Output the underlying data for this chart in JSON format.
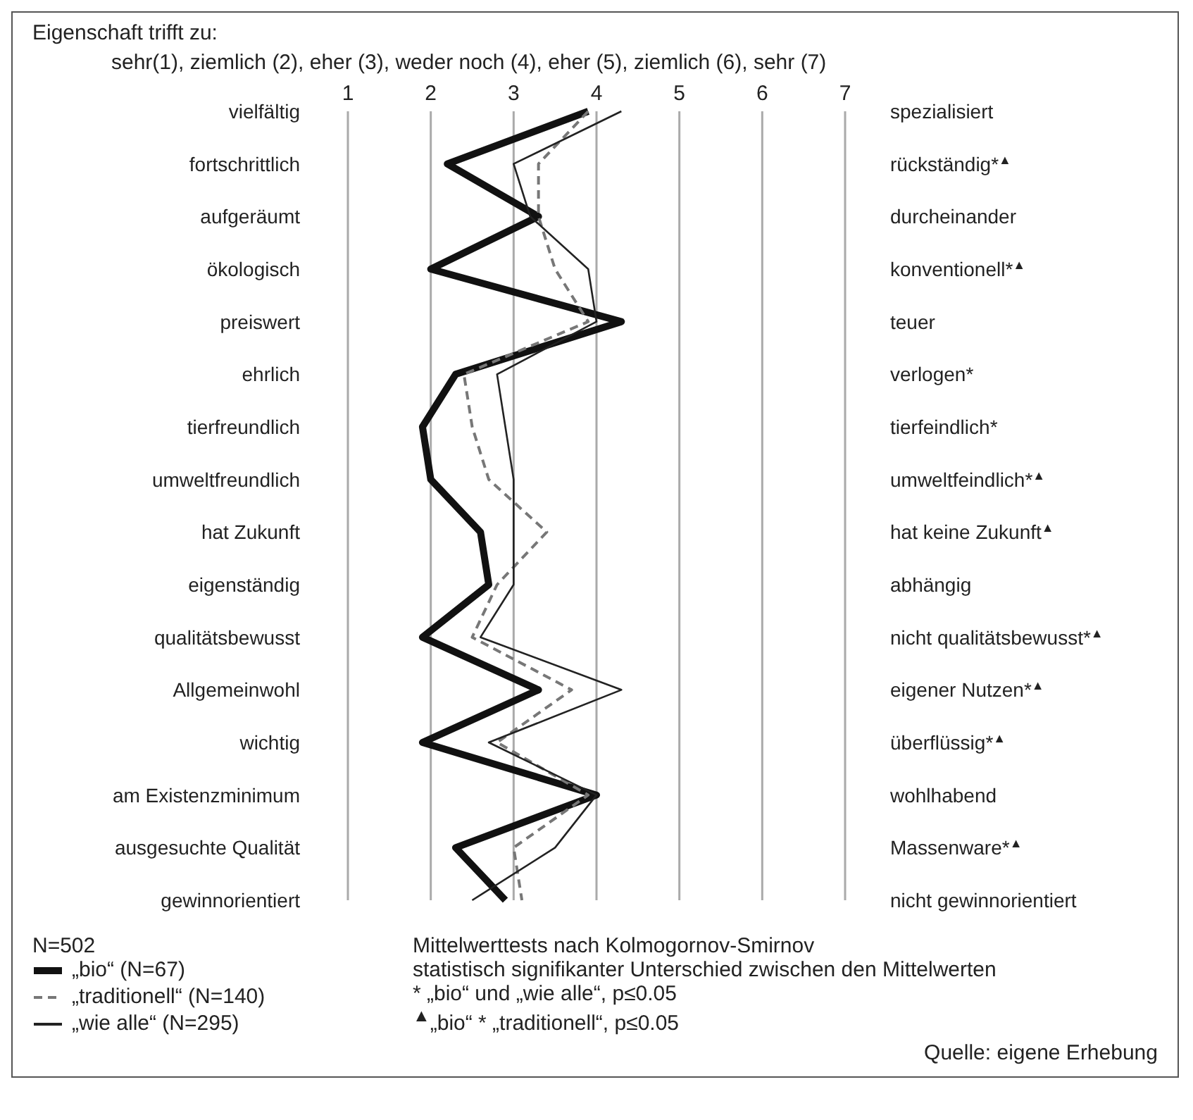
{
  "chart_data": {
    "type": "line",
    "orientation": "horizontal",
    "title": "Eigenschaft trifft zu:",
    "subtitle": "sehr(1), ziemlich (2), eher (3), weder noch (4), eher (5), ziemlich (6), sehr (7)",
    "categories": [
      "vielfältig",
      "fortschrittlich",
      "aufgeräumt",
      "ökologisch",
      "preiswert",
      "ehrlich",
      "tierfreundlich",
      "umweltfreundlich",
      "hat Zukunft",
      "eigenständig",
      "qualitätsbewusst",
      "Allgemeinwohl",
      "wichtig",
      "am Existenzminimum",
      "ausgesuchte Qualität",
      "gewinnorientiert"
    ],
    "y2_categories": [
      "spezialisiert",
      "rückständig*$^{▲}$",
      "durcheinander",
      "konventionell*$^{▲}$",
      "teuer",
      "verlogen*",
      "tierfeindlich*",
      "umweltfeindlich*$^{▲}$",
      "hat keine Zukunft$^{▲}$",
      "abhängig",
      "nicht qualitätsbewusst*$^{▲}$",
      "eigener Nutzen*$^{▲}$",
      "überflüssig*$^{▲}$",
      "wohlhabend",
      "Massenware*$^{▲}$",
      "nicht gewinnorientiert"
    ],
    "series": [
      {
        "name": "„bio“ (N=67)",
        "color": "#111111",
        "line_style": "solid",
        "values": [
          3.9,
          2.2,
          3.3,
          2.0,
          4.3,
          2.3,
          1.9,
          2.0,
          2.6,
          2.7,
          1.9,
          3.3,
          1.9,
          4.0,
          2.3,
          2.9
        ]
      },
      {
        "name": "„traditionell“ (N=140)",
        "color": "#777777",
        "line_style": "dashed",
        "values": [
          3.9,
          3.3,
          3.3,
          3.5,
          3.9,
          2.4,
          2.5,
          2.7,
          3.4,
          2.8,
          2.5,
          3.7,
          2.8,
          3.9,
          3.0,
          3.1
        ]
      },
      {
        "name": "„wie alle“ (N=295)",
        "color": "#222222",
        "line_style": "solid",
        "values": [
          4.3,
          3.0,
          3.2,
          3.9,
          4.0,
          2.8,
          2.9,
          3.0,
          3.0,
          3.0,
          2.6,
          4.3,
          2.7,
          4.0,
          3.5,
          2.5
        ]
      }
    ],
    "xlim": [
      1,
      7
    ],
    "xticks": [
      1,
      2,
      3,
      4,
      5,
      6,
      7
    ],
    "grid": "x",
    "legend": "bottom left",
    "marker": "none",
    "annotations": [
      "N=502",
      "Mittelwerttests nach Kolmogornov-Smirnov",
      "statistisch signifikanter Unterschied zwischen den Mittelwerten",
      "* „bio“ und „wie alle“, p≤0.05",
      "$^{▲}$„bio“ * „traditionell“, p≤0.05",
      "Quelle: eigene Erhebung"
    ]
  }
}
